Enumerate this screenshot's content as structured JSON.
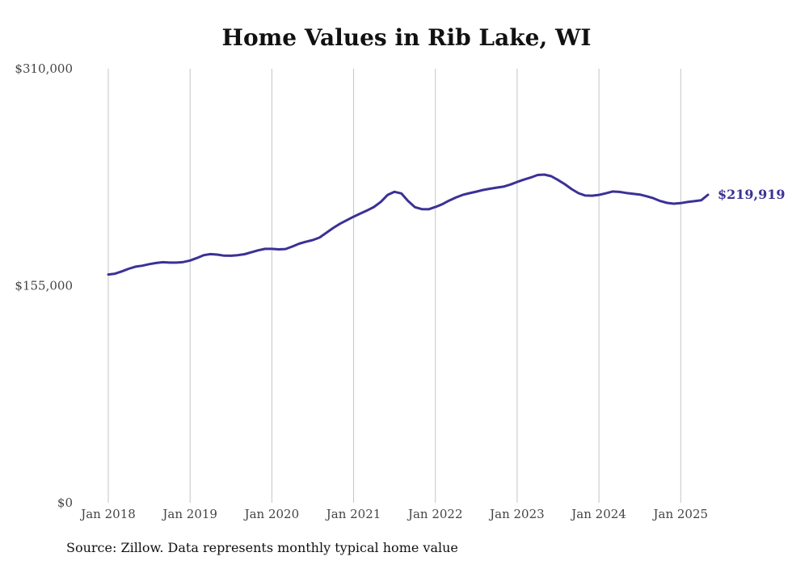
{
  "chart_data": {
    "type": "line",
    "title": "Home Values in Rib Lake, WI",
    "source": "Source: Zillow. Data represents monthly typical home value",
    "y_ticks": [
      "$310,000",
      "$155,000",
      "$0"
    ],
    "ylim": [
      0,
      310000
    ],
    "x_ticks": [
      "Jan 2018",
      "Jan 2019",
      "Jan 2020",
      "Jan 2021",
      "Jan 2022",
      "Jan 2023",
      "Jan 2024",
      "Jan 2025"
    ],
    "xlim": [
      "2018-01",
      "2025-05"
    ],
    "grid": "vertical",
    "line_color": "#3b3196",
    "end_label": "$219,919",
    "series": [
      {
        "x": [
          "2018-01",
          "2018-02",
          "2018-03",
          "2018-04",
          "2018-05",
          "2018-06",
          "2018-07",
          "2018-08",
          "2018-09",
          "2018-10",
          "2018-11",
          "2018-12",
          "2019-01",
          "2019-02",
          "2019-03",
          "2019-04",
          "2019-05",
          "2019-06",
          "2019-07",
          "2019-08",
          "2019-09",
          "2019-10",
          "2019-11",
          "2019-12",
          "2020-01",
          "2020-02",
          "2020-03",
          "2020-04",
          "2020-05",
          "2020-06",
          "2020-07",
          "2020-08",
          "2020-09",
          "2020-10",
          "2020-11",
          "2020-12",
          "2021-01",
          "2021-02",
          "2021-03",
          "2021-04",
          "2021-05",
          "2021-06",
          "2021-07",
          "2021-08",
          "2021-09",
          "2021-10",
          "2021-11",
          "2021-12",
          "2022-01",
          "2022-02",
          "2022-03",
          "2022-04",
          "2022-05",
          "2022-06",
          "2022-07",
          "2022-08",
          "2022-09",
          "2022-10",
          "2022-11",
          "2022-12",
          "2023-01",
          "2023-02",
          "2023-03",
          "2023-04",
          "2023-05",
          "2023-06",
          "2023-07",
          "2023-08",
          "2023-09",
          "2023-10",
          "2023-11",
          "2023-12",
          "2024-01",
          "2024-02",
          "2024-03",
          "2024-04",
          "2024-05",
          "2024-06",
          "2024-07",
          "2024-08",
          "2024-09",
          "2024-10",
          "2024-11",
          "2024-12",
          "2025-01",
          "2025-02",
          "2025-03",
          "2025-04",
          "2025-05"
        ],
        "values": [
          163000,
          163600,
          165300,
          167100,
          168600,
          169300,
          170400,
          171200,
          171800,
          171500,
          171500,
          171900,
          173000,
          174800,
          176800,
          177600,
          177200,
          176500,
          176400,
          176800,
          177500,
          178900,
          180300,
          181300,
          181300,
          181000,
          181200,
          183000,
          185000,
          186400,
          187600,
          189400,
          192800,
          196300,
          199300,
          201800,
          204300,
          206600,
          208800,
          211300,
          214900,
          219900,
          222100,
          220900,
          215500,
          211100,
          209700,
          209600,
          211200,
          213200,
          215800,
          218000,
          219900,
          221100,
          222200,
          223400,
          224300,
          225100,
          225800,
          227300,
          229100,
          230800,
          232300,
          234100,
          234400,
          233200,
          230500,
          227500,
          224000,
          221100,
          219400,
          219300,
          219900,
          221000,
          222300,
          222000,
          221300,
          220700,
          220100,
          218900,
          217500,
          215500,
          214200,
          213600,
          214000,
          214800,
          215400,
          216000,
          219919
        ]
      }
    ]
  }
}
